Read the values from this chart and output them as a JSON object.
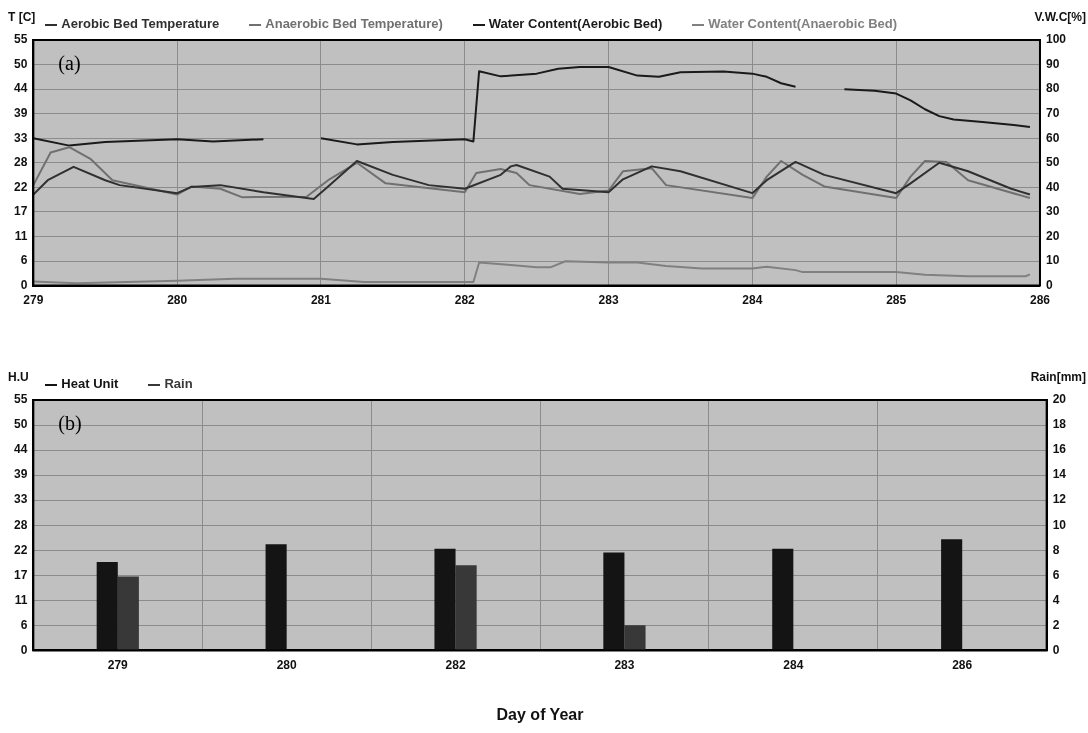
{
  "chart_data": [
    {
      "type": "line",
      "ylabel": "T [C]",
      "y2label": "V.W.C[%]",
      "annotations": [
        "(a)"
      ],
      "legend": "top",
      "grid": true,
      "xlim": [
        279,
        286
      ],
      "xticks": [
        279,
        280,
        281,
        282,
        283,
        284,
        285,
        286
      ],
      "ylim": [
        0,
        55
      ],
      "yticks": [
        0,
        {
          "value": 5.5,
          "label": "6"
        },
        11,
        {
          "value": 16.5,
          "label": "17"
        },
        22,
        {
          "value": 27.5,
          "label": "28"
        },
        33,
        {
          "value": 38.5,
          "label": "39"
        },
        44,
        {
          "value": 49.5,
          "label": "50"
        },
        55
      ],
      "y2lim": [
        0,
        100
      ],
      "y2ticks": [
        0,
        10,
        20,
        30,
        40,
        50,
        60,
        70,
        80,
        90,
        100
      ],
      "series": [
        {
          "name": "Aerobic Bed Temperature",
          "color": "#303030",
          "x": [
            279,
            279.1,
            279.28,
            279.5,
            279.6,
            280,
            280.1,
            280.3,
            280.6,
            280.95,
            281.05,
            281.25,
            281.5,
            281.75,
            282,
            282.25,
            282.32,
            282.36,
            282.59,
            282.68,
            283,
            283.1,
            283.3,
            283.5,
            284,
            284.1,
            284.3,
            284.5,
            285,
            285.1,
            285.3,
            285.5,
            285.8,
            285.93
          ],
          "values": [
            20.4,
            23.6,
            26.6,
            23.6,
            22.5,
            20.7,
            22.1,
            22.5,
            20.9,
            19.4,
            22.2,
            27.9,
            24.8,
            22.5,
            21.7,
            24.8,
            26.7,
            27,
            24.4,
            21.7,
            20.9,
            23.8,
            26.7,
            25.6,
            20.7,
            23.6,
            27.7,
            24.8,
            20.7,
            22.9,
            27.5,
            25.6,
            21.7,
            20.4
          ]
        },
        {
          "name": "Anaerobic Bed Temperature)",
          "color": "#707070",
          "x": [
            279,
            279.12,
            279.25,
            279.4,
            279.55,
            280,
            280.1,
            280.3,
            280.45,
            280.9,
            281.05,
            281.25,
            281.45,
            282,
            282.08,
            282.25,
            282.36,
            282.45,
            282.8,
            283,
            283.1,
            283.3,
            283.4,
            284,
            284.1,
            284.2,
            284.35,
            284.5,
            285,
            285.1,
            285.2,
            285.35,
            285.5,
            285.93
          ],
          "values": [
            22.5,
            29.8,
            31,
            28.3,
            23.6,
            20.4,
            22.2,
            21.7,
            19.8,
            19.9,
            23.6,
            27.5,
            22.9,
            20.9,
            25.2,
            26.1,
            25.2,
            22.5,
            20.5,
            21.3,
            25.6,
            26.3,
            22.5,
            19.6,
            24.4,
            27.9,
            24.8,
            22.2,
            19.6,
            24.4,
            27.9,
            27.7,
            23.6,
            19.6
          ]
        },
        {
          "name": "Water Content(Aerobic Bed)",
          "color": "#1a1a1a",
          "axis": "y2",
          "x": [
            279,
            279.25,
            279.5,
            280,
            280.25,
            280.6,
            280.7,
            281,
            281.25,
            281.5,
            282,
            282.06,
            282.1,
            282.25,
            282.5,
            282.65,
            282.8,
            283,
            283.2,
            283.35,
            283.5,
            283.8,
            284,
            284.1,
            284.2,
            284.3,
            284.5,
            284.64,
            284.85,
            285,
            285.1,
            285.2,
            285.3,
            285.4,
            285.6,
            285.8,
            285.93
          ],
          "values": [
            60,
            57,
            58.5,
            59.6,
            58.7,
            59.6,
            null,
            60,
            57.5,
            58.5,
            59.6,
            58.7,
            87.3,
            85.2,
            86.3,
            88.3,
            89,
            89,
            85.5,
            85,
            86.9,
            87.2,
            86.3,
            85,
            82.4,
            81,
            null,
            79.9,
            79.3,
            78.2,
            75.4,
            71.8,
            69,
            67.6,
            66.6,
            65.5,
            64.6
          ]
        },
        {
          "name": "Water Content(Anaerobic Bed)",
          "color": "#808080",
          "axis": "y2",
          "x": [
            279,
            279.3,
            280,
            280.4,
            281,
            281.3,
            282,
            282.06,
            282.1,
            282.3,
            282.5,
            282.6,
            282.7,
            283,
            283.2,
            283.4,
            283.65,
            284,
            284.1,
            284.3,
            284.35,
            285,
            285.2,
            285.5,
            285.9,
            285.93
          ],
          "values": [
            1.7,
            1,
            2,
            2.8,
            2.8,
            1.5,
            1.5,
            1.5,
            9.4,
            8.5,
            7.5,
            7.5,
            9.9,
            9.4,
            9.4,
            8,
            7,
            7,
            7.7,
            6.3,
            5.5,
            5.5,
            4.4,
            3.8,
            3.8,
            4.6
          ]
        }
      ]
    },
    {
      "type": "bar",
      "ylabel": "H.U",
      "y2label": "Rain[mm]",
      "xlabel": "Day of Year",
      "annotations": [
        "(b)"
      ],
      "legend": "top",
      "grid": true,
      "categories": [
        "279",
        "280",
        "282",
        "283",
        "284",
        "286"
      ],
      "ylim": [
        0,
        55
      ],
      "yticks": [
        0,
        {
          "value": 5.5,
          "label": "6"
        },
        11,
        {
          "value": 16.5,
          "label": "17"
        },
        22,
        {
          "value": 27.5,
          "label": "28"
        },
        33,
        {
          "value": 38.5,
          "label": "39"
        },
        44,
        {
          "value": 49.5,
          "label": "50"
        },
        55
      ],
      "y2lim": [
        0,
        20
      ],
      "y2ticks": [
        0,
        2,
        4,
        6,
        8,
        10,
        12,
        14,
        16,
        18,
        20
      ],
      "series": [
        {
          "name": "Heat Unit",
          "color": "#141414",
          "values": [
            19.4,
            23.3,
            22.3,
            21.5,
            22.3,
            24.4
          ]
        },
        {
          "name": "Rain",
          "color": "#383838",
          "axis": "y2",
          "values": [
            5.9,
            0,
            6.8,
            2,
            0,
            0
          ]
        }
      ]
    }
  ]
}
